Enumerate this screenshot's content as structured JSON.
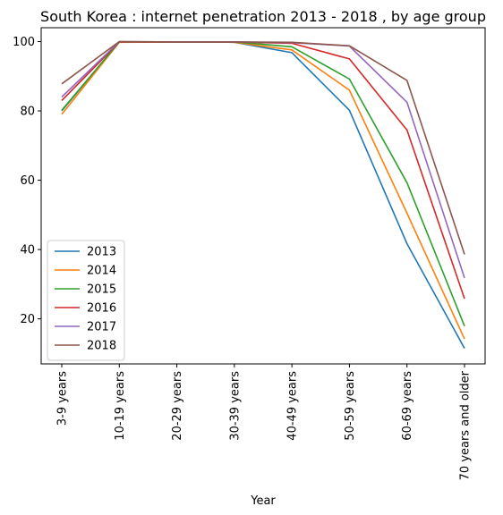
{
  "chart_data": {
    "type": "line",
    "title": "South Korea : internet penetration 2013 - 2018 , by age group",
    "xlabel": "Year",
    "ylabel": "",
    "categories": [
      "3-9 years",
      "10-19 years",
      "20-29 years",
      "30-39 years",
      "40-49 years",
      "50-59 years",
      "60-69 years",
      "70 years and older"
    ],
    "ylim": [
      7,
      104
    ],
    "yticks": [
      "20",
      "40",
      "60",
      "80",
      "100"
    ],
    "grid": false,
    "legend_position": "lower left",
    "series": [
      {
        "name": "2013",
        "color": "#1f77b4",
        "values": [
          80.0,
          99.9,
          99.9,
          99.8,
          96.8,
          80.2,
          41.7,
          11.5
        ]
      },
      {
        "name": "2014",
        "color": "#ff7f0e",
        "values": [
          79.0,
          99.8,
          99.9,
          99.8,
          97.6,
          86.0,
          50.5,
          14.2
        ]
      },
      {
        "name": "2015",
        "color": "#2ca02c",
        "values": [
          80.2,
          99.9,
          99.9,
          99.9,
          98.5,
          89.2,
          59.3,
          17.9
        ]
      },
      {
        "name": "2016",
        "color": "#d62728",
        "values": [
          83.0,
          99.9,
          99.9,
          99.9,
          99.5,
          95.0,
          74.5,
          25.8
        ]
      },
      {
        "name": "2017",
        "color": "#9467bd",
        "values": [
          84.0,
          100.0,
          99.9,
          99.9,
          99.7,
          98.7,
          82.5,
          31.8
        ]
      },
      {
        "name": "2018",
        "color": "#8c564b",
        "values": [
          87.8,
          100.0,
          99.9,
          99.9,
          99.8,
          98.8,
          88.8,
          38.6
        ]
      }
    ]
  }
}
